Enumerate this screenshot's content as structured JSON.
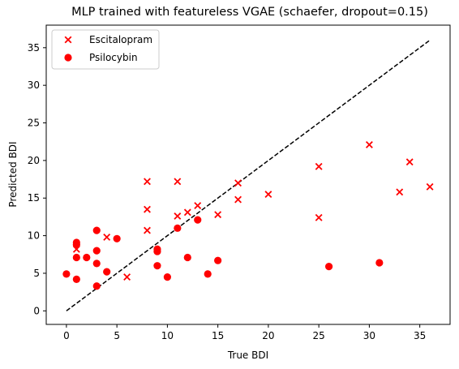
{
  "chart_data": {
    "type": "scatter",
    "title": "MLP trained with featureless VGAE (schaefer, dropout=0.15)",
    "xlabel": "True BDI",
    "ylabel": "Predicted BDI",
    "xlim": [
      -2,
      38
    ],
    "ylim": [
      -1.8,
      38
    ],
    "xticks": [
      0,
      5,
      10,
      15,
      20,
      25,
      30,
      35
    ],
    "yticks": [
      0,
      5,
      10,
      15,
      20,
      25,
      30,
      35
    ],
    "grid": false,
    "legend_position": "top-left",
    "identity_line": {
      "x": [
        0,
        36
      ],
      "y": [
        0,
        36
      ],
      "style": "dashed",
      "color": "#000000"
    },
    "series": [
      {
        "name": "Escitalopram",
        "marker": "x",
        "color": "#ff0000",
        "points": [
          [
            1,
            8.2
          ],
          [
            4,
            9.8
          ],
          [
            6,
            4.5
          ],
          [
            8,
            17.2
          ],
          [
            8,
            13.5
          ],
          [
            8,
            10.7
          ],
          [
            11,
            17.2
          ],
          [
            11,
            12.6
          ],
          [
            12,
            13.1
          ],
          [
            13,
            14.0
          ],
          [
            15,
            12.8
          ],
          [
            17,
            17.0
          ],
          [
            17,
            14.8
          ],
          [
            20,
            15.5
          ],
          [
            25,
            19.2
          ],
          [
            25,
            12.4
          ],
          [
            30,
            22.1
          ],
          [
            33,
            15.8
          ],
          [
            34,
            19.8
          ],
          [
            36,
            16.5
          ]
        ]
      },
      {
        "name": "Psilocybin",
        "marker": "o",
        "color": "#ff0000",
        "points": [
          [
            0,
            4.9
          ],
          [
            1,
            9.1
          ],
          [
            1,
            8.8
          ],
          [
            1,
            7.1
          ],
          [
            1,
            4.2
          ],
          [
            2,
            7.1
          ],
          [
            3,
            10.7
          ],
          [
            3,
            8.0
          ],
          [
            3,
            6.3
          ],
          [
            3,
            3.3
          ],
          [
            4,
            5.2
          ],
          [
            5,
            9.6
          ],
          [
            9,
            8.2
          ],
          [
            9,
            7.9
          ],
          [
            9,
            6.0
          ],
          [
            10,
            4.5
          ],
          [
            11,
            11.0
          ],
          [
            12,
            7.1
          ],
          [
            13,
            12.1
          ],
          [
            14,
            4.9
          ],
          [
            15,
            6.7
          ],
          [
            26,
            5.9
          ],
          [
            31,
            6.4
          ]
        ]
      }
    ]
  }
}
